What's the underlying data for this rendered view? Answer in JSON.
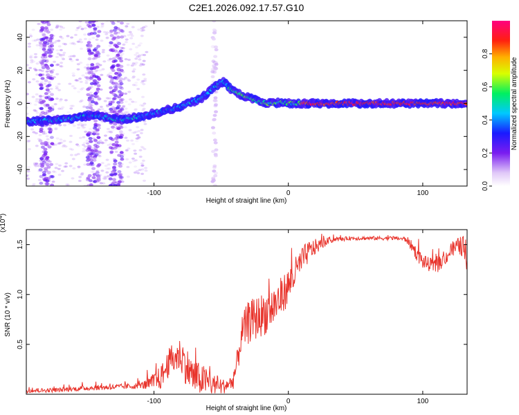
{
  "title": "C2E1.2026.092.17.57.G10",
  "chart_data": [
    {
      "type": "heatmap",
      "name": "spectrogram",
      "xlabel": "Height of straight line (km)",
      "ylabel": "Frequency (Hz)",
      "xlim": [
        -195,
        133
      ],
      "ylim": [
        -50,
        50
      ],
      "xticks": [
        -100,
        0,
        100
      ],
      "yticks": [
        -40,
        -20,
        0,
        20,
        40
      ],
      "xtick_labels": [
        "-100",
        "0",
        "100"
      ],
      "ytick_labels": [
        "-40",
        "-20",
        "0",
        "20",
        "40"
      ],
      "colorbar": {
        "label": "Normalized spectral amplitude",
        "range": [
          0,
          1
        ],
        "ticks": [
          0.0,
          0.2,
          0.4,
          0.6,
          0.8
        ],
        "tick_labels": [
          "0.0",
          "0.2",
          "0.4",
          "0.6",
          "0.8"
        ]
      },
      "track": {
        "x": [
          -195,
          -175,
          -160,
          -145,
          -125,
          -110,
          -95,
          -80,
          -65,
          -55,
          -48,
          -42,
          -35,
          -28,
          -22,
          -15,
          -10,
          -5,
          0,
          5,
          10,
          30,
          60,
          90,
          133
        ],
        "y": [
          -11,
          -10,
          -9,
          -7,
          -10,
          -8,
          -5,
          -2,
          3,
          10,
          13,
          8,
          5,
          3,
          1,
          0,
          0,
          1,
          0,
          0,
          0,
          0,
          0,
          0,
          0
        ]
      },
      "vertical_bands_x": [
        -180,
        -145,
        -128,
        -55
      ]
    },
    {
      "type": "line",
      "name": "snr",
      "xlabel": "Height of straight line (km)",
      "ylabel": "SNR (10 * v/v)",
      "y_multiplier": "(x10",
      "y_multiplier_exp": "4",
      "y_multiplier_close": ")",
      "xlim": [
        -195,
        133
      ],
      "ylim": [
        0,
        1.65
      ],
      "xticks": [
        -100,
        0,
        100
      ],
      "yticks": [
        0.5,
        1.0,
        1.5
      ],
      "xtick_labels": [
        "-100",
        "0",
        "100"
      ],
      "ytick_labels": [
        "0.5",
        "1.0",
        "1.5"
      ],
      "color": "#e8332b",
      "envelope": {
        "x": [
          -195,
          -170,
          -150,
          -130,
          -115,
          -105,
          -95,
          -88,
          -80,
          -75,
          -70,
          -62,
          -55,
          -48,
          -42,
          -38,
          -35,
          -30,
          -25,
          -20,
          -15,
          -10,
          -5,
          0,
          5,
          10,
          15,
          20,
          25,
          30,
          35,
          40,
          45,
          50,
          60,
          70,
          80,
          88,
          92,
          96,
          100,
          105,
          110,
          115,
          120,
          125,
          130,
          133
        ],
        "y": [
          0.04,
          0.05,
          0.07,
          0.08,
          0.09,
          0.11,
          0.2,
          0.38,
          0.45,
          0.32,
          0.22,
          0.18,
          0.12,
          0.1,
          0.14,
          0.35,
          0.65,
          0.78,
          0.82,
          0.86,
          0.9,
          0.96,
          1.04,
          1.14,
          1.26,
          1.38,
          1.46,
          1.5,
          1.52,
          1.55,
          1.56,
          1.56,
          1.57,
          1.57,
          1.57,
          1.57,
          1.57,
          1.56,
          1.5,
          1.42,
          1.35,
          1.32,
          1.3,
          1.36,
          1.44,
          1.5,
          1.52,
          1.3
        ]
      },
      "noise_amplitude": {
        "x": [
          -195,
          -110,
          -95,
          -75,
          -60,
          -45,
          -40,
          -30,
          -10,
          10,
          25,
          35,
          85,
          95,
          120,
          133
        ],
        "y": [
          0.02,
          0.03,
          0.12,
          0.2,
          0.14,
          0.06,
          0.12,
          0.22,
          0.22,
          0.14,
          0.05,
          0.02,
          0.02,
          0.07,
          0.07,
          0.12
        ]
      }
    }
  ]
}
